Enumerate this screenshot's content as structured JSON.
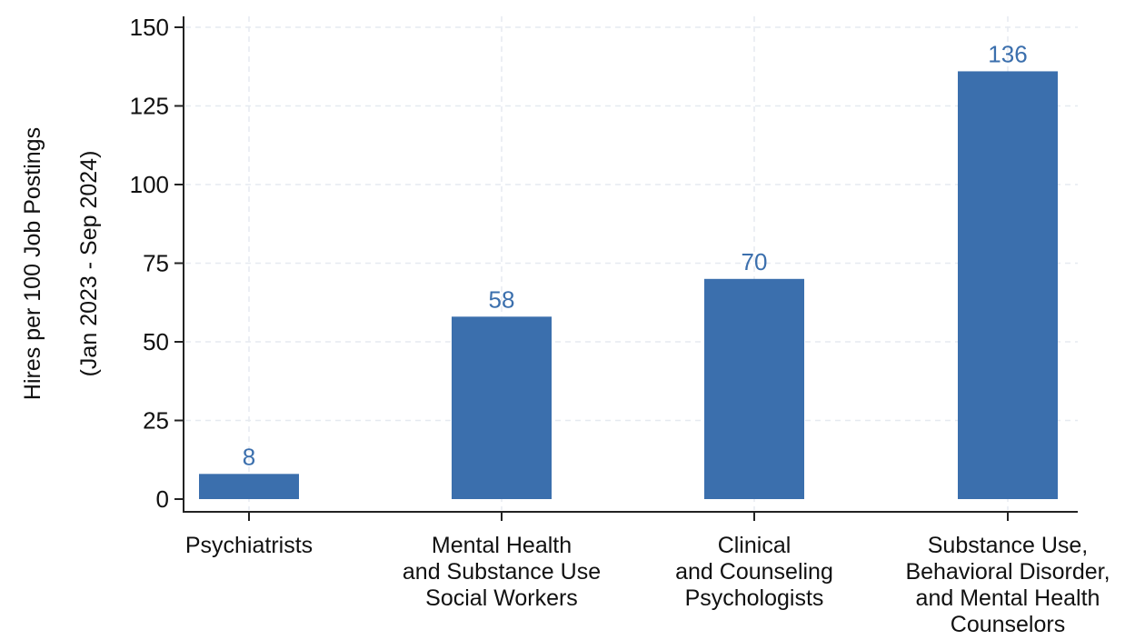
{
  "chart_data": {
    "type": "bar",
    "categories": [
      [
        "Psychiatrists"
      ],
      [
        "Mental Health",
        "and Substance Use",
        "Social Workers"
      ],
      [
        "Clinical",
        "and Counseling",
        "Psychologists"
      ],
      [
        "Substance Use,",
        "Behavioral Disorder,",
        "and Mental Health",
        "Counselors"
      ]
    ],
    "values": [
      8,
      58,
      70,
      136
    ],
    "data_labels": [
      "8",
      "58",
      "70",
      "136"
    ],
    "title": "",
    "xlabel": "",
    "ylabel": [
      "Hires per 100 Job Postings",
      "(Jan 2023 - Sep 2024)"
    ],
    "ylim": [
      0,
      150
    ],
    "yticks": [
      0,
      25,
      50,
      75,
      100,
      125,
      150
    ],
    "grid": true,
    "legend": "none",
    "bar_color": "#3b6fad",
    "label_color": "#3b6fad"
  }
}
